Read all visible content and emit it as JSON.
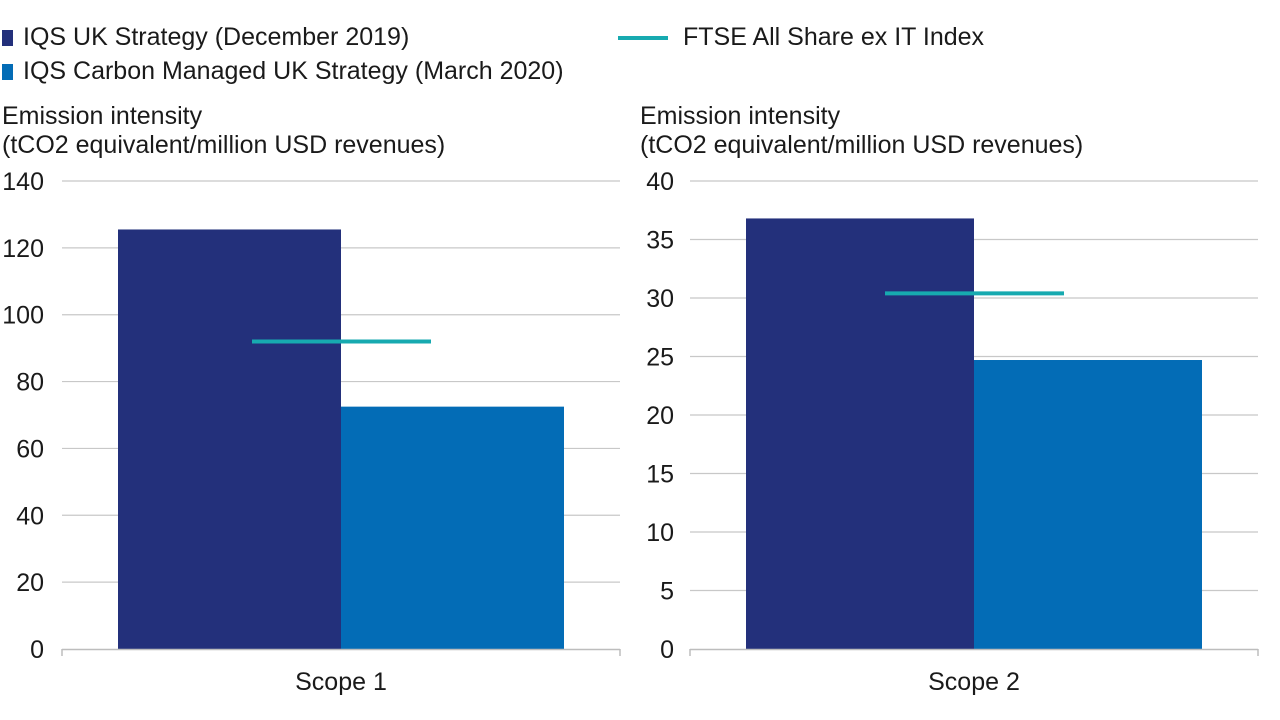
{
  "legend": {
    "items": [
      {
        "label": "IQS UK Strategy (December 2019)",
        "color": "#23307b",
        "kind": "box"
      },
      {
        "label": "IQS Carbon Managed UK Strategy (March 2020)",
        "color": "#036cb6",
        "kind": "box"
      },
      {
        "label": "FTSE All Share ex IT Index",
        "color": "#17aab0",
        "kind": "line"
      }
    ]
  },
  "chart_data": [
    {
      "type": "bar",
      "category": "Scope 1",
      "ylabel_line1": "Emission intensity",
      "ylabel_line2": "(tCO2 equivalent/million USD revenues)",
      "ylim": [
        0,
        140
      ],
      "yticks": [
        0,
        20,
        40,
        60,
        80,
        100,
        120,
        140
      ],
      "series": [
        {
          "name": "IQS UK Strategy (December 2019)",
          "value": 125.5
        },
        {
          "name": "IQS Carbon Managed UK Strategy (March 2020)",
          "value": 72.5
        }
      ],
      "benchmark": {
        "name": "FTSE All Share ex IT Index",
        "value": 92
      }
    },
    {
      "type": "bar",
      "category": "Scope 2",
      "ylabel_line1": "Emission intensity",
      "ylabel_line2": "(tCO2 equivalent/million USD revenues)",
      "ylim": [
        0,
        40
      ],
      "yticks": [
        0,
        5,
        10,
        15,
        20,
        25,
        30,
        35,
        40
      ],
      "series": [
        {
          "name": "IQS UK Strategy (December 2019)",
          "value": 36.8
        },
        {
          "name": "IQS Carbon Managed UK Strategy (March 2020)",
          "value": 24.7
        }
      ],
      "benchmark": {
        "name": "FTSE All Share ex IT Index",
        "value": 30.4
      }
    }
  ]
}
